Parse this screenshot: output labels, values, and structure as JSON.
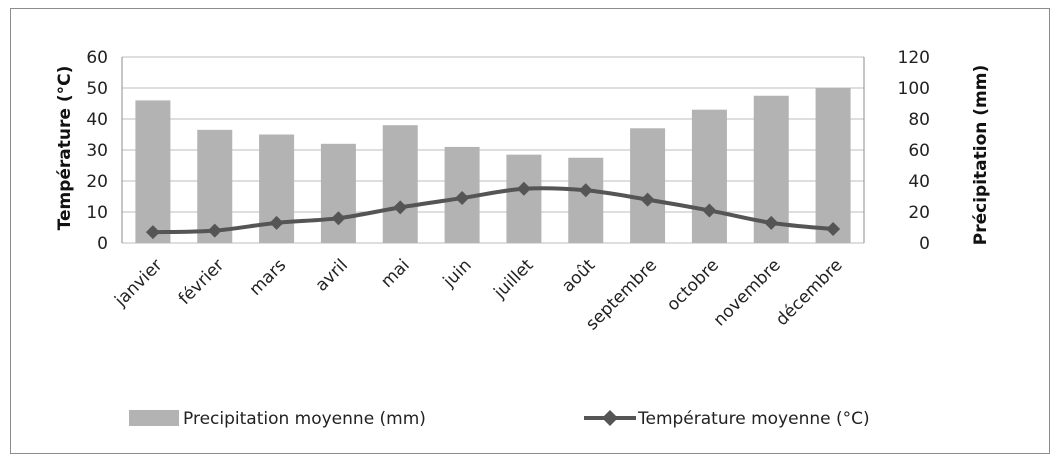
{
  "chart_data": {
    "type": "bar+line",
    "categories": [
      "janvier",
      "février",
      "mars",
      "avril",
      "mai",
      "juin",
      "juillet",
      "août",
      "septembre",
      "octobre",
      "novembre",
      "décembre"
    ],
    "series": [
      {
        "name": "Precipitation moyenne (mm)",
        "type": "bar",
        "axis": "right",
        "values": [
          92,
          73,
          70,
          64,
          76,
          62,
          57,
          55,
          74,
          86,
          95,
          100
        ]
      },
      {
        "name": "Température moyenne (°C)",
        "type": "line",
        "axis": "left",
        "values": [
          3.5,
          4,
          6.5,
          8,
          11.5,
          14.5,
          17.5,
          17,
          14,
          10.5,
          6.5,
          4.5
        ]
      }
    ],
    "ylabel_left": "Température (°C)",
    "ylabel_right": "Précipitation (mm)",
    "ylim_left": [
      0,
      60
    ],
    "yticks_left": [
      0,
      10,
      20,
      30,
      40,
      50,
      60
    ],
    "ylim_right": [
      0,
      120
    ],
    "yticks_right": [
      0,
      20,
      40,
      60,
      80,
      100,
      120
    ],
    "grid": true,
    "legend_position": "bottom",
    "colors": {
      "bar": "#b3b3b3",
      "line": "#555555",
      "grid": "#bdbdbd"
    }
  }
}
